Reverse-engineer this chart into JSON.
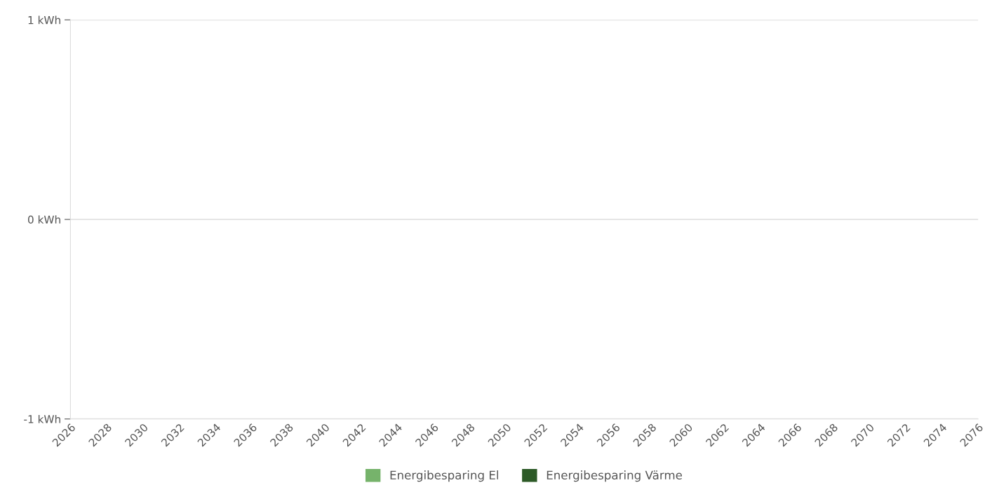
{
  "chart_data": {
    "type": "bar",
    "categories": [
      "2026",
      "2028",
      "2030",
      "2032",
      "2034",
      "2036",
      "2038",
      "2040",
      "2042",
      "2044",
      "2046",
      "2048",
      "2050",
      "2052",
      "2054",
      "2056",
      "2058",
      "2060",
      "2062",
      "2064",
      "2066",
      "2068",
      "2070",
      "2072",
      "2074",
      "2076"
    ],
    "series": [
      {
        "name": "Energibesparing El",
        "color": "#76b36b",
        "values": [
          null,
          null,
          null,
          null,
          null,
          null,
          null,
          null,
          null,
          null,
          null,
          null,
          null,
          null,
          null,
          null,
          null,
          null,
          null,
          null,
          null,
          null,
          null,
          null,
          null,
          null
        ]
      },
      {
        "name": "Energibesparing Värme",
        "color": "#2d5a27",
        "values": [
          null,
          null,
          null,
          null,
          null,
          null,
          null,
          null,
          null,
          null,
          null,
          null,
          null,
          null,
          null,
          null,
          null,
          null,
          null,
          null,
          null,
          null,
          null,
          null,
          null,
          null
        ]
      }
    ],
    "ylim": [
      -1,
      1
    ],
    "yticks": [
      {
        "value": -1,
        "label": "-1 kWh"
      },
      {
        "value": 0,
        "label": "0 kWh"
      },
      {
        "value": 1,
        "label": "1 kWh"
      }
    ],
    "grid": "y",
    "legend": "bottom"
  }
}
